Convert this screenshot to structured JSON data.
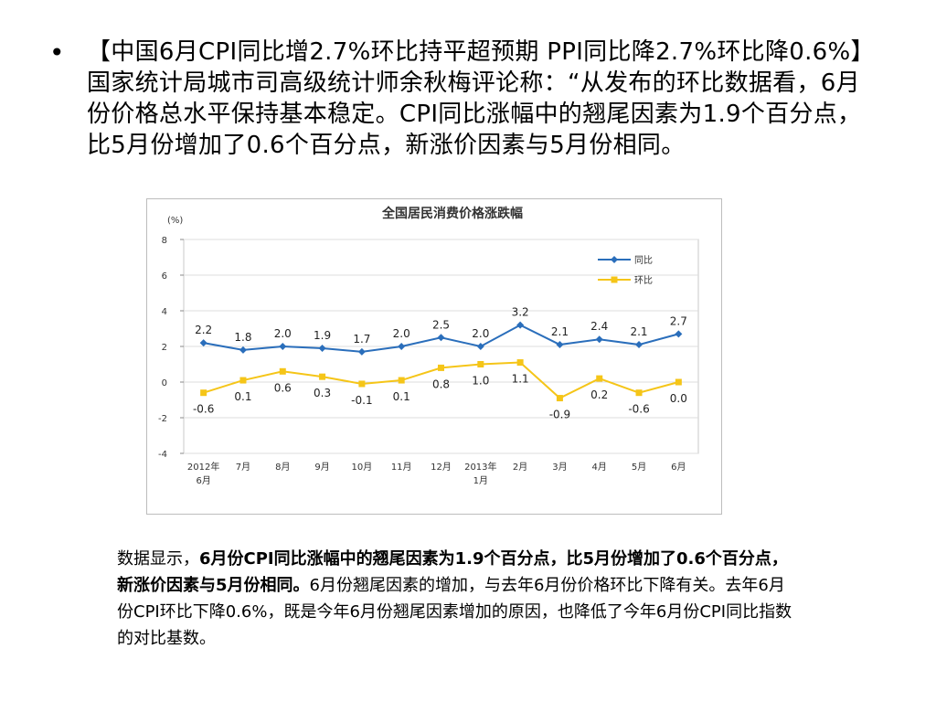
{
  "bullet": {
    "marker": "•",
    "text": "【中国6月CPI同比增2.7%环比持平超预期 PPI同比降2.7%环比降0.6%】国家统计局城市司高级统计师余秋梅评论称：“从发布的环比数据看，6月份价格总水平保持基本稳定。CPI同比涨幅中的翘尾因素为1.9个百分点，比5月份增加了0.6个百分点，新涨价因素与5月份相同。"
  },
  "caption": {
    "part1": "数据显示，",
    "part2_bold": "6月份CPI同比涨幅中的翘尾因素为1.9个百分点，比5月份增加了0.6个百分点，新涨价因素与5月份相同。",
    "part3": "6月份翘尾因素的增加，与去年6月份价格环比下降有关。去年6月份CPI环比下降0.6%，既是今年6月份翘尾因素增加的原因，也降低了今年6月份CPI同比指数的对比基数。"
  },
  "chart_data": {
    "type": "line",
    "title": "全国居民消费价格涨跌幅",
    "ylabel": "(%)",
    "ylim": [
      -4,
      8
    ],
    "yticks": [
      8,
      6,
      4,
      2,
      0,
      -2,
      -4
    ],
    "grid": true,
    "legend_position": "top-right",
    "categories": [
      [
        "2012年",
        "6月"
      ],
      [
        "7月"
      ],
      [
        "8月"
      ],
      [
        "9月"
      ],
      [
        "10月"
      ],
      [
        "11月"
      ],
      [
        "12月"
      ],
      [
        "2013年",
        "1月"
      ],
      [
        "2月"
      ],
      [
        "3月"
      ],
      [
        "4月"
      ],
      [
        "5月"
      ],
      [
        "6月"
      ]
    ],
    "series": [
      {
        "name": "同比",
        "color": "#2a6ebb",
        "marker": "diamond",
        "values": [
          2.2,
          1.8,
          2.0,
          1.9,
          1.7,
          2.0,
          2.5,
          2.0,
          3.2,
          2.1,
          2.4,
          2.1,
          2.7
        ],
        "labels": [
          "2.2",
          "1.8",
          "2.0",
          "1.9",
          "1.7",
          "2.0",
          "2.5",
          "2.0",
          "3.2",
          "2.1",
          "2.4",
          "2.1",
          "2.7"
        ]
      },
      {
        "name": "环比",
        "color": "#f5c518",
        "marker": "square",
        "values": [
          -0.6,
          0.1,
          0.6,
          0.3,
          -0.1,
          0.1,
          0.8,
          1.0,
          1.1,
          -0.9,
          0.2,
          -0.6,
          0.0
        ],
        "labels": [
          "-0.6",
          "0.1",
          "0.6",
          "0.3",
          "-0.1",
          "0.1",
          "0.8",
          "1.0",
          "1.1",
          "-0.9",
          "0.2",
          "-0.6",
          "0.0"
        ]
      }
    ]
  }
}
